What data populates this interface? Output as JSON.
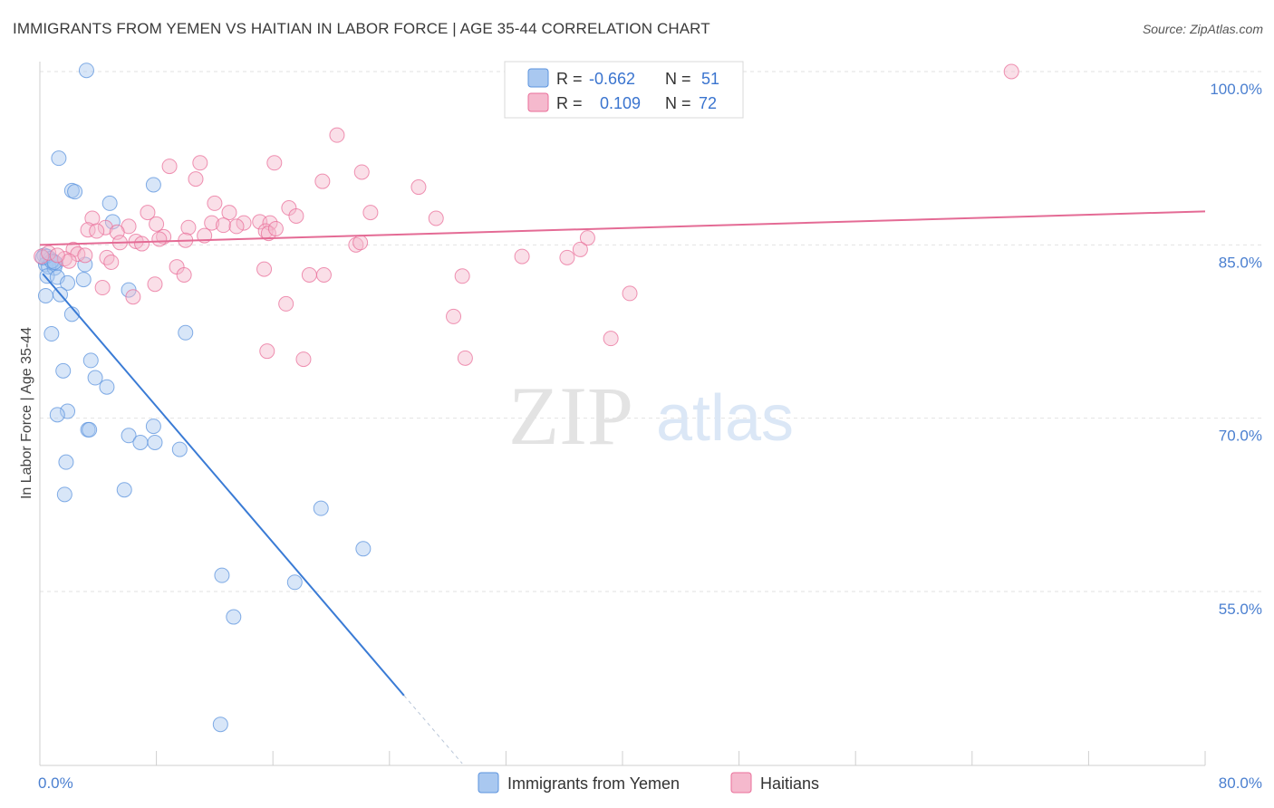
{
  "header": {
    "title": "IMMIGRANTS FROM YEMEN VS HAITIAN IN LABOR FORCE | AGE 35-44 CORRELATION CHART",
    "source": "Source: ZipAtlas.com"
  },
  "watermark": {
    "zip": "ZIP",
    "atlas": "atlas"
  },
  "chart_data": {
    "type": "scatter",
    "title": "IMMIGRANTS FROM YEMEN VS HAITIAN IN LABOR FORCE | AGE 35-44 CORRELATION CHART",
    "xlabel": "",
    "ylabel": "In Labor Force | Age 35-44",
    "xlim": [
      0,
      80
    ],
    "ylim": [
      40,
      103
    ],
    "x_tick_labels": [
      "0.0%",
      "80.0%"
    ],
    "y_ticks": [
      {
        "value": 100,
        "label": "100.0%"
      },
      {
        "value": 85,
        "label": "85.0%"
      },
      {
        "value": 70,
        "label": "70.0%"
      },
      {
        "value": 55,
        "label": "55.0%"
      }
    ],
    "grid": true,
    "legend_stats": [
      {
        "series": "Immigrants from Yemen",
        "r_label": "R =",
        "r": "-0.662",
        "n_label": "N =",
        "n": "51",
        "color": "#a9c8f0"
      },
      {
        "series": "Haitians",
        "r_label": "R =",
        "r": "0.109",
        "n_label": "N =",
        "n": "72",
        "color": "#f5b9cd"
      }
    ],
    "series": [
      {
        "name": "Immigrants from Yemen",
        "color": "#5b93de",
        "fill": "#a9c8f0",
        "trend": {
          "x0": 0.2,
          "y0": 82.5,
          "x1": 25,
          "y1": 46,
          "dash_to_x": 29,
          "line_color": "#3a7bd5"
        },
        "points": [
          [
            3.2,
            100.1
          ],
          [
            1.3,
            92.5
          ],
          [
            2.2,
            89.7
          ],
          [
            2.4,
            89.6
          ],
          [
            7.8,
            90.2
          ],
          [
            4.8,
            88.6
          ],
          [
            5.0,
            87.0
          ],
          [
            0.3,
            84.1
          ],
          [
            0.5,
            84.0
          ],
          [
            0.7,
            83.8
          ],
          [
            0.9,
            83.6
          ],
          [
            1.1,
            83.4
          ],
          [
            0.4,
            83.3
          ],
          [
            0.6,
            83.1
          ],
          [
            1.0,
            83.0
          ],
          [
            0.8,
            83.6
          ],
          [
            0.2,
            83.9
          ],
          [
            3.1,
            83.3
          ],
          [
            0.5,
            82.3
          ],
          [
            1.2,
            82.2
          ],
          [
            1.9,
            81.7
          ],
          [
            3.0,
            82.0
          ],
          [
            6.1,
            81.1
          ],
          [
            0.4,
            80.6
          ],
          [
            1.4,
            80.7
          ],
          [
            2.2,
            79.0
          ],
          [
            0.8,
            77.3
          ],
          [
            10.0,
            77.4
          ],
          [
            1.6,
            74.1
          ],
          [
            3.5,
            75.0
          ],
          [
            3.8,
            73.5
          ],
          [
            4.6,
            72.7
          ],
          [
            1.9,
            70.6
          ],
          [
            1.2,
            70.3
          ],
          [
            3.3,
            69.0
          ],
          [
            3.4,
            69.0
          ],
          [
            7.8,
            69.3
          ],
          [
            6.1,
            68.5
          ],
          [
            6.9,
            67.9
          ],
          [
            7.9,
            67.9
          ],
          [
            9.6,
            67.3
          ],
          [
            1.8,
            66.2
          ],
          [
            5.8,
            63.8
          ],
          [
            1.7,
            63.4
          ],
          [
            19.3,
            62.2
          ],
          [
            22.2,
            58.7
          ],
          [
            12.5,
            56.4
          ],
          [
            17.5,
            55.8
          ],
          [
            13.3,
            52.8
          ],
          [
            12.4,
            43.5
          ],
          [
            1.0,
            83.5
          ]
        ]
      },
      {
        "name": "Haitians",
        "color": "#ea6f9a",
        "fill": "#f5b9cd",
        "trend": {
          "x0": 0,
          "y0": 85.0,
          "x1": 80,
          "y1": 87.9,
          "line_color": "#e46b95"
        },
        "points": [
          [
            66.7,
            100.0
          ],
          [
            20.4,
            94.5
          ],
          [
            11.0,
            92.1
          ],
          [
            8.9,
            91.8
          ],
          [
            16.1,
            92.1
          ],
          [
            22.1,
            91.3
          ],
          [
            10.7,
            90.7
          ],
          [
            19.4,
            90.5
          ],
          [
            26.0,
            90.0
          ],
          [
            12.0,
            88.6
          ],
          [
            17.1,
            88.2
          ],
          [
            22.7,
            87.8
          ],
          [
            7.4,
            87.8
          ],
          [
            13.0,
            87.8
          ],
          [
            17.6,
            87.5
          ],
          [
            3.6,
            87.3
          ],
          [
            27.2,
            87.3
          ],
          [
            8.0,
            86.8
          ],
          [
            11.8,
            86.9
          ],
          [
            12.6,
            86.7
          ],
          [
            14.0,
            86.9
          ],
          [
            15.1,
            87.0
          ],
          [
            15.8,
            86.9
          ],
          [
            13.5,
            86.6
          ],
          [
            15.5,
            86.2
          ],
          [
            4.5,
            86.5
          ],
          [
            6.1,
            86.6
          ],
          [
            3.3,
            86.3
          ],
          [
            3.9,
            86.2
          ],
          [
            10.2,
            86.5
          ],
          [
            15.7,
            86.0
          ],
          [
            16.2,
            86.4
          ],
          [
            5.3,
            86.1
          ],
          [
            8.5,
            85.7
          ],
          [
            8.2,
            85.5
          ],
          [
            10.0,
            85.4
          ],
          [
            11.3,
            85.8
          ],
          [
            6.6,
            85.3
          ],
          [
            5.5,
            85.2
          ],
          [
            7.0,
            85.1
          ],
          [
            21.7,
            85.0
          ],
          [
            22.0,
            85.2
          ],
          [
            37.6,
            85.6
          ],
          [
            2.3,
            84.6
          ],
          [
            2.6,
            84.2
          ],
          [
            3.1,
            84.1
          ],
          [
            4.6,
            83.9
          ],
          [
            0.1,
            84.0
          ],
          [
            0.6,
            84.3
          ],
          [
            1.7,
            83.8
          ],
          [
            2.0,
            83.6
          ],
          [
            33.1,
            84.0
          ],
          [
            36.2,
            83.9
          ],
          [
            37.1,
            84.6
          ],
          [
            4.9,
            83.5
          ],
          [
            9.4,
            83.1
          ],
          [
            9.9,
            82.4
          ],
          [
            15.4,
            82.9
          ],
          [
            18.5,
            82.4
          ],
          [
            19.5,
            82.4
          ],
          [
            29.0,
            82.3
          ],
          [
            7.9,
            81.6
          ],
          [
            4.3,
            81.3
          ],
          [
            6.4,
            80.5
          ],
          [
            40.5,
            80.8
          ],
          [
            16.9,
            79.9
          ],
          [
            28.4,
            78.8
          ],
          [
            39.2,
            76.9
          ],
          [
            15.6,
            75.8
          ],
          [
            18.1,
            75.1
          ],
          [
            29.2,
            75.2
          ],
          [
            1.2,
            84.1
          ]
        ]
      }
    ]
  },
  "bottom_legend": [
    {
      "label": "Immigrants from Yemen",
      "color": "#a9c8f0",
      "stroke": "#5b93de"
    },
    {
      "label": "Haitians",
      "color": "#f5b9cd",
      "stroke": "#ea6f9a"
    }
  ]
}
